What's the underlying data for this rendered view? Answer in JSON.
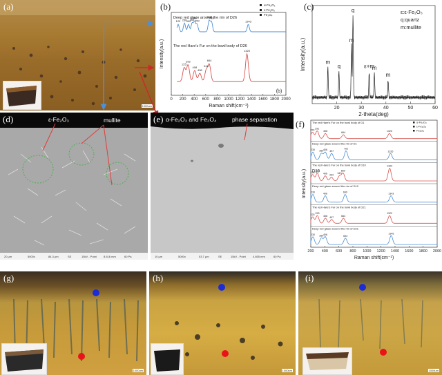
{
  "panel_labels": {
    "a": "(a)",
    "b": "(b)",
    "b_inner": "(b)",
    "c": "(c)",
    "d": "(d)",
    "e": "(e)",
    "f": "(f)",
    "g": "(g)",
    "h": "(h)",
    "i": "(i)"
  },
  "scale_bars": {
    "a": "1000um",
    "g": "1000um",
    "h": "1000um",
    "i": "1000um"
  },
  "annotations": {
    "d_phase": "ε-Fe₂O₃",
    "d_mullite": "mullite",
    "e_phase": "α-Fe₂O₃ and Fe₃O₄",
    "e_separation": "phase separation"
  },
  "sem_info": {
    "d": [
      "20 μm",
      "5000x",
      "84.3 μm",
      "SE",
      "15kV - Point",
      "8.616 mm",
      "60 Pa"
    ],
    "e": [
      "10 μm",
      "5000x",
      "53.7 μm",
      "SE",
      "15kV - Point",
      "4.655 mm",
      "60 Pa"
    ]
  },
  "colors": {
    "red_dot": "#e8141a",
    "blue_dot": "#1d2bd6",
    "blue_arrow": "#4a90e2",
    "red_arrow": "#cc2a2a",
    "blue_trace": "#4a8fd6",
    "red_trace": "#d9534f"
  },
  "chart_data": [
    {
      "type": "line",
      "panel": "b",
      "xlabel": "Raman shift(cm⁻¹)",
      "ylabel": "Intensity(a.u.)",
      "xlim": [
        0,
        2000
      ],
      "xticks": [
        0,
        200,
        400,
        600,
        800,
        1000,
        1200,
        1400,
        1600,
        1800,
        2000
      ],
      "legend": [
        "α-Fe₂O₃",
        "ε-Fe₂O₃",
        "Fe₃O₄"
      ],
      "series": [
        {
          "name": "Deep red glaze around the rim of D26",
          "peaks": [
            120,
            230,
            300,
            364,
            406,
            450,
            660,
            702,
            1343
          ],
          "peak_labels": [
            "120",
            "230",
            "300",
            "364",
            "406",
            "450",
            "660",
            "702",
            "1343"
          ]
        },
        {
          "name": "The red Hare's Fur on the bowl body of D26",
          "peaks": [
            225,
            293,
            408,
            498,
            610,
            664,
            1320
          ],
          "peak_labels": [
            "225",
            "293",
            "408",
            "498",
            "610",
            "664",
            "1320"
          ]
        }
      ]
    },
    {
      "type": "line",
      "panel": "c",
      "xlabel": "2-theta(deg)",
      "ylabel": "Intensity(a.u.)",
      "xlim": [
        10,
        60
      ],
      "xticks": [
        20,
        30,
        40,
        50,
        60
      ],
      "legend": [
        "ε:ε-Fe₂O₃",
        "q:quartz",
        "m:mullite"
      ],
      "peaks": [
        {
          "x": 16.4,
          "label": "m"
        },
        {
          "x": 20.9,
          "label": "q"
        },
        {
          "x": 26.0,
          "label": "m"
        },
        {
          "x": 26.6,
          "label": "q"
        },
        {
          "x": 33.2,
          "label": "ε+m"
        },
        {
          "x": 35.3,
          "label": "m"
        },
        {
          "x": 40.9,
          "label": "m"
        }
      ]
    },
    {
      "type": "line",
      "panel": "f",
      "xlabel": "Raman shift(cm⁻¹)",
      "ylabel": "Intensity(a.u.)",
      "xlim": [
        200,
        2000
      ],
      "xticks": [
        200,
        400,
        600,
        800,
        1000,
        1200,
        1400,
        1600,
        1800,
        2000
      ],
      "legend": [
        "α-Fe₂O₃",
        "ε-Fe₂O₃",
        "Fe₃O₄"
      ],
      "series": [
        {
          "name": "The red Hare's Fur on the bowl body of D1",
          "peaks": [
            223,
            291,
            408,
            664,
            1320
          ],
          "peak_labels": [
            "223",
            "291",
            "408",
            "664",
            "1320"
          ]
        },
        {
          "name": "Deep red glaze around the rim of D1",
          "peaks": [
            120,
            230,
            350,
            406,
            497,
            702,
            1335
          ],
          "peak_labels": [
            "120",
            "230",
            "350",
            "406",
            "497",
            "702",
            "1335"
          ]
        },
        {
          "name": "The red Hare's Fur on the bowl body of D10",
          "peaks": [
            225,
            293,
            406,
            494,
            610,
            660,
            1323
          ],
          "peak_labels": [
            "225",
            "293",
            "406",
            "494",
            "610",
            "660",
            "1323"
          ],
          "tag": "D10"
        },
        {
          "name": "Deep red glaze around the rim of D10",
          "peaks": [
            120,
            230,
            406,
            690,
            1343
          ],
          "peak_labels": [
            "120",
            "230",
            "406",
            "690",
            "1343"
          ]
        },
        {
          "name": "The red Hare's Fur on the bowl body of D21",
          "peaks": [
            225,
            293,
            408,
            497,
            664,
            1322
          ],
          "peak_labels": [
            "225",
            "293",
            "408",
            "497",
            "664",
            "1322"
          ]
        },
        {
          "name": "Deep red glaze around the rim of D21",
          "peaks": [
            120,
            230,
            350,
            406,
            693,
            1345
          ],
          "peak_labels": [
            "120",
            "230",
            "350",
            "406",
            "693",
            "1345"
          ]
        }
      ]
    }
  ]
}
